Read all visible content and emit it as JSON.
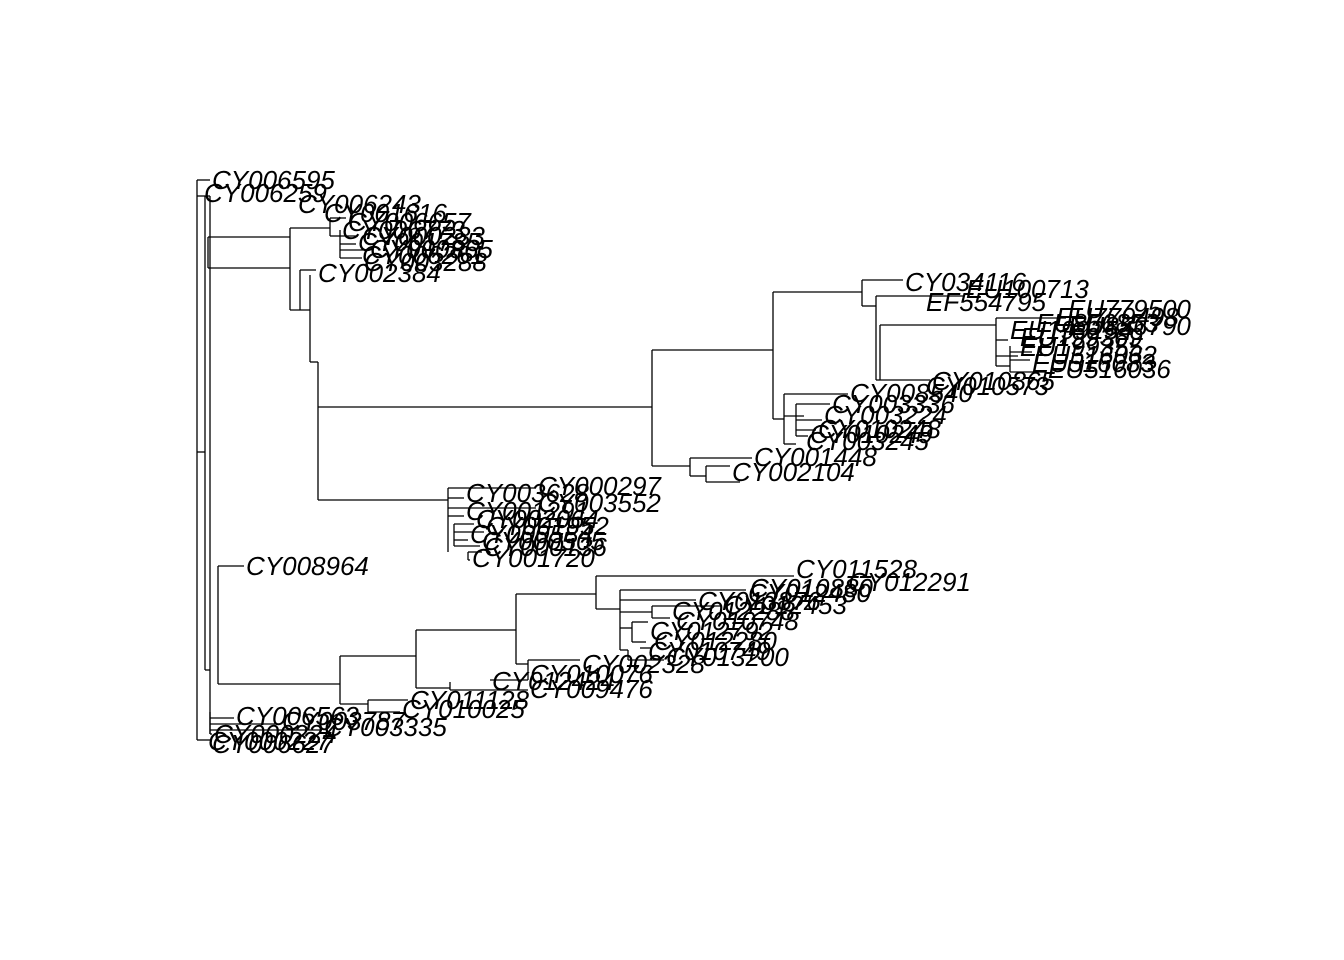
{
  "tree": {
    "tips": [
      "CY006595",
      "CY006259",
      "CY006243",
      "CY001616",
      "CY006657",
      "CY006773",
      "CY000233",
      "CY001785",
      "CY000865",
      "CY006261",
      "CY003288",
      "CY002384",
      "CY034116",
      "EU100713",
      "EF554795",
      "EU779500",
      "EU779498",
      "EU856853",
      "EU856790",
      "EU199254",
      "EU199369",
      "EU199355",
      "EU516062",
      "EU516083",
      "EU516036",
      "CY010865",
      "CY010573",
      "CY008540",
      "CY003336",
      "CY003224",
      "CY010248",
      "CY010249",
      "CY003245",
      "CY001448",
      "CY002104",
      "CY000297",
      "CY003628",
      "CY003552",
      "CY001291",
      "CY002064",
      "CY001952",
      "CY000584",
      "CY000505",
      "CY000136",
      "CY001720",
      "CY008964",
      "CY011528",
      "CY012291",
      "CY010880",
      "CY012480",
      "CY013876",
      "CY012453",
      "CY012288",
      "CY010748",
      "CY012792",
      "CY012280",
      "CY010749",
      "CY013200",
      "CY002328",
      "CY010076",
      "CY012424",
      "CY009476",
      "CY011128",
      "CY010025",
      "CY006563",
      "CY003787",
      "CY003335",
      "CY000224",
      "CY000227",
      "CY006627"
    ]
  }
}
